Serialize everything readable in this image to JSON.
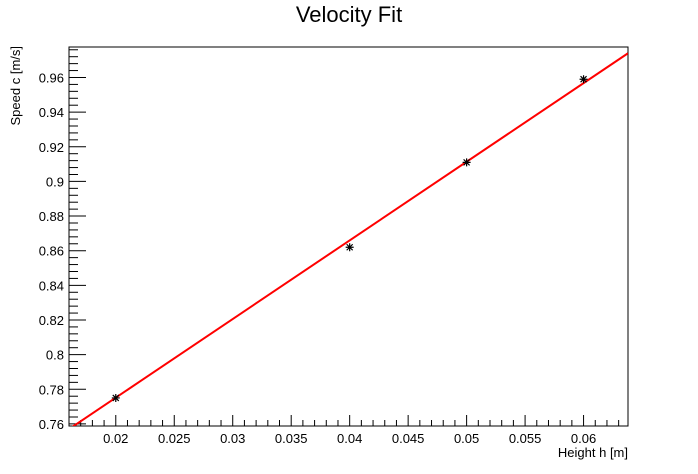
{
  "chart_data": {
    "type": "scatter",
    "title": "Velocity Fit",
    "xlabel": "Height h [m]",
    "ylabel": "Speed c [m/s]",
    "xlim": [
      0.016,
      0.0638
    ],
    "ylim": [
      0.7588,
      0.9776
    ],
    "x_ticks": [
      0.02,
      0.025,
      0.03,
      0.035,
      0.04,
      0.045,
      0.05,
      0.055,
      0.06
    ],
    "x_tick_labels": [
      "0.02",
      "0.025",
      "0.03",
      "0.035",
      "0.04",
      "0.045",
      "0.05",
      "0.055",
      "0.06"
    ],
    "y_ticks": [
      0.76,
      0.78,
      0.8,
      0.82,
      0.84,
      0.86,
      0.88,
      0.9,
      0.92,
      0.94,
      0.96
    ],
    "y_tick_labels": [
      "0.76",
      "0.78",
      "0.8",
      "0.82",
      "0.84",
      "0.86",
      "0.88",
      "0.9",
      "0.92",
      "0.94",
      "0.96"
    ],
    "grid": false,
    "legend": "none",
    "series": [
      {
        "type": "scatter",
        "marker": "asterisk",
        "color": "#000000",
        "x": [
          0.02,
          0.04,
          0.05,
          0.06
        ],
        "y": [
          0.775,
          0.862,
          0.911,
          0.959
        ]
      },
      {
        "type": "line",
        "color": "#ff0000",
        "x": [
          0.016,
          0.0638
        ],
        "y": [
          0.757,
          0.974
        ]
      }
    ]
  }
}
